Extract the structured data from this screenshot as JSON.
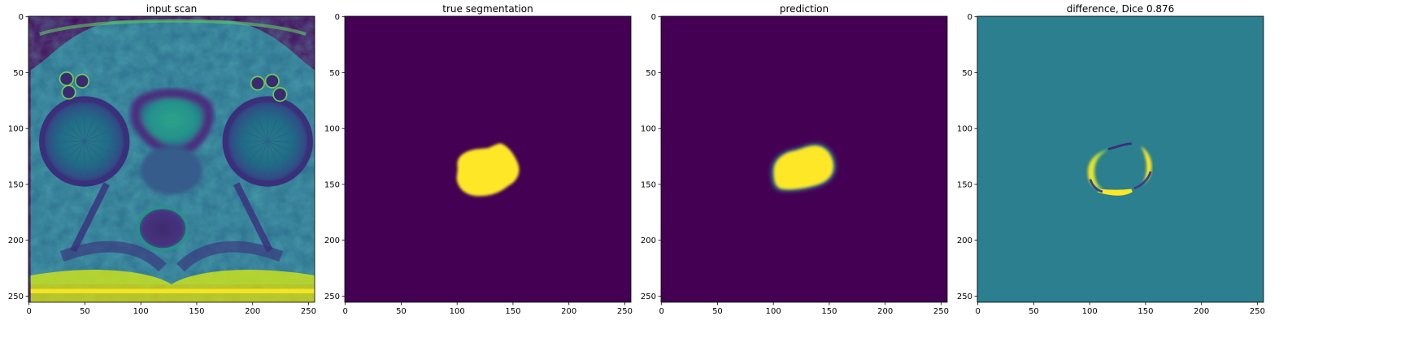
{
  "figure": {
    "panels": [
      {
        "id": "input-scan",
        "title": "input scan",
        "kind": "mri"
      },
      {
        "id": "true-segmentation",
        "title": "true segmentation",
        "kind": "gt-mask"
      },
      {
        "id": "prediction",
        "title": "prediction",
        "kind": "pred-mask"
      },
      {
        "id": "difference",
        "title": "difference, Dice 0.876",
        "kind": "diff"
      }
    ],
    "x_ticks": [
      "0",
      "50",
      "100",
      "150",
      "200",
      "250"
    ],
    "y_ticks": [
      "0",
      "50",
      "100",
      "150",
      "200",
      "250"
    ],
    "x_tick_values": [
      0,
      50,
      100,
      150,
      200,
      250
    ],
    "y_tick_values": [
      0,
      50,
      100,
      150,
      200,
      250
    ],
    "image_extent": [
      0,
      256
    ],
    "colormap": "viridis",
    "colors": {
      "viridis_low": "#440154",
      "viridis_mid": "#21918c",
      "viridis_high": "#fde725",
      "viridis_teal": "#2b7f8e"
    },
    "dice": 0.876
  }
}
